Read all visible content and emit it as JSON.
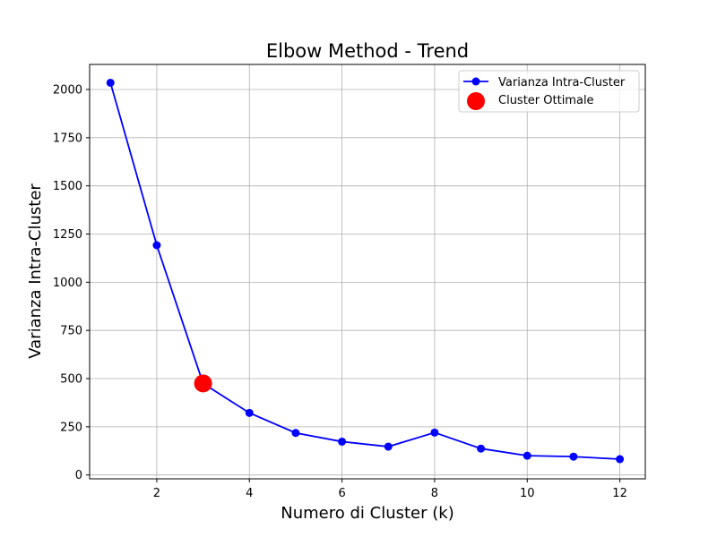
{
  "chart_data": {
    "type": "line",
    "title": "Elbow Method - Trend",
    "xlabel": "Numero di Cluster (k)",
    "ylabel": "Varianza Intra-Cluster",
    "xlim": [
      0.55,
      12.55
    ],
    "ylim": [
      -20,
      2130
    ],
    "xticks": [
      2,
      4,
      6,
      8,
      10,
      12
    ],
    "yticks": [
      0,
      250,
      500,
      750,
      1000,
      1250,
      1500,
      1750,
      2000
    ],
    "grid": true,
    "legend_position": "top-right",
    "series": [
      {
        "name": "Varianza Intra-Cluster",
        "color": "#0000ff",
        "marker": "circle",
        "x": [
          1,
          2,
          3,
          4,
          5,
          6,
          7,
          8,
          9,
          10,
          11,
          12
        ],
        "y": [
          2035,
          1192,
          475,
          322,
          218,
          173,
          147,
          220,
          137,
          100,
          95,
          82
        ]
      }
    ],
    "highlight": {
      "name": "Cluster Ottimale",
      "color": "#ff0000",
      "x": 3,
      "y": 475
    }
  }
}
